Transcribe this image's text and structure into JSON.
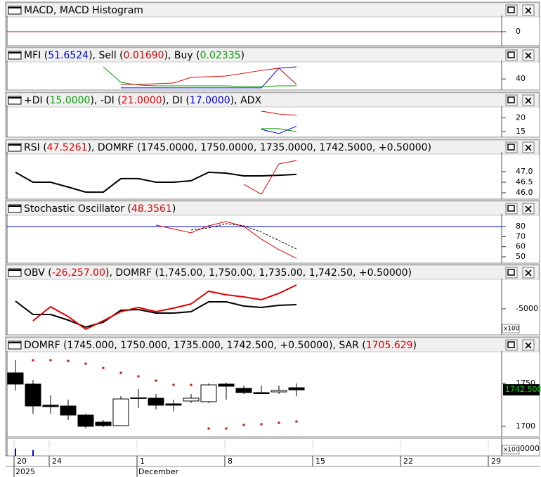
{
  "chart_data": [
    {
      "type": "line",
      "header": [
        "MACD, MACD Histogram"
      ],
      "header_colors": [
        "#000000"
      ],
      "ylim": [
        -1,
        1
      ],
      "yticks": [
        0
      ],
      "hline": 0,
      "hline_color": "#e00000",
      "series": []
    },
    {
      "type": "line",
      "header": [
        "MFI (",
        "51.6524",
        "), Sell (",
        "0.01690",
        "), Buy (",
        "0.02335",
        ")"
      ],
      "header_colors": [
        "#000000",
        "#0000e0",
        "#000000",
        "#e00000",
        "#000000",
        "#00a000",
        "#000000"
      ],
      "ylim": [
        30,
        55
      ],
      "yticks": [
        40
      ],
      "series": [
        {
          "color": "#00a000",
          "values": [
            null,
            null,
            null,
            null,
            null,
            51.6,
            36.8,
            34.1,
            33.4,
            33.4,
            33.4,
            33.4,
            33.4,
            32.7,
            32.7,
            33.4,
            33.4
          ]
        },
        {
          "color": "#e00000",
          "values": [
            null,
            null,
            null,
            null,
            null,
            null,
            34.7,
            34.7,
            35.4,
            36.1,
            41.5,
            42.2,
            42.8,
            45.5,
            48.2,
            50.3,
            34.7
          ]
        },
        {
          "color": "#0000e0",
          "values": [
            null,
            null,
            null,
            null,
            null,
            null,
            31.4,
            31.4,
            31.4,
            31.4,
            31.4,
            31.4,
            31.4,
            31.4,
            31.4,
            50.3,
            51.65
          ]
        }
      ]
    },
    {
      "type": "line",
      "header": [
        "+DI (",
        "15.0000",
        "), -DI (",
        "21.0000",
        "), DI (",
        "17.0000",
        "), ADX"
      ],
      "header_colors": [
        "#000000",
        "#00a000",
        "#000000",
        "#e00000",
        "#000000",
        "#0000e0",
        "#000000"
      ],
      "ylim": [
        13.5,
        23.5
      ],
      "yticks": [
        20,
        15
      ],
      "series": [
        {
          "color": "#e00000",
          "values": [
            null,
            null,
            null,
            null,
            null,
            null,
            null,
            null,
            null,
            null,
            null,
            null,
            null,
            null,
            22.5,
            21.4,
            21.0
          ]
        },
        {
          "color": "#00a000",
          "values": [
            null,
            null,
            null,
            null,
            null,
            null,
            null,
            null,
            null,
            null,
            null,
            null,
            null,
            null,
            16.1,
            16.1,
            15.0
          ]
        },
        {
          "color": "#0000e0",
          "values": [
            null,
            null,
            null,
            null,
            null,
            null,
            null,
            null,
            null,
            null,
            null,
            null,
            null,
            null,
            15.8,
            14.3,
            17.0
          ]
        }
      ]
    },
    {
      "type": "line",
      "header": [
        "RSI (",
        "47.5261",
        "), DOMRF (1745.0000, 1750.0000, 1735.0000, 1742.5000, +0.50000)"
      ],
      "header_colors": [
        "#000000",
        "#e00000",
        "#000000"
      ],
      "ylim": [
        45.8,
        47.8
      ],
      "yticks": [
        {
          "value": 47.0,
          "label": "47.0"
        },
        {
          "value": 46.5,
          "label": "46.5"
        },
        {
          "value": 46.0,
          "label": "46.0"
        }
      ],
      "series": [
        {
          "color": "#000000",
          "width": 2,
          "values": [
            46.97,
            46.5,
            46.5,
            46.27,
            46.03,
            46.03,
            46.67,
            46.67,
            46.5,
            46.5,
            46.57,
            46.97,
            46.93,
            46.8,
            46.8,
            46.83,
            46.87
          ]
        },
        {
          "color": "#e00000",
          "values": [
            null,
            null,
            null,
            null,
            null,
            null,
            null,
            null,
            null,
            null,
            null,
            null,
            null,
            46.4,
            45.93,
            47.37,
            47.53
          ]
        }
      ]
    },
    {
      "type": "line",
      "header": [
        "Stochastic Oscillator (",
        "48.3561",
        ")"
      ],
      "header_colors": [
        "#000000",
        "#e00000",
        "#000000"
      ],
      "ylim": [
        46.5,
        89.8
      ],
      "yticks": [
        80,
        70,
        60,
        50
      ],
      "hline": 80,
      "hline_color": "#0000c0",
      "series": [
        {
          "color": "#e00000",
          "values": [
            null,
            null,
            null,
            null,
            null,
            null,
            null,
            null,
            81.5,
            77.6,
            73.8,
            80.8,
            85.0,
            80.1,
            67.5,
            57.0,
            48.4
          ]
        },
        {
          "color": "#000000",
          "dashed": true,
          "values": [
            null,
            null,
            null,
            null,
            null,
            null,
            null,
            null,
            null,
            null,
            76.6,
            78.7,
            82.9,
            80.8,
            74.5,
            66.1,
            57.7
          ]
        }
      ]
    },
    {
      "type": "line",
      "header": [
        "OBV (",
        "-26,257.00",
        "), DOMRF (1,745.00, 1,750.00, 1,735.00, 1,742.50, +0.50000)"
      ],
      "header_colors": [
        "#000000",
        "#e00000",
        "#000000"
      ],
      "ylim": [
        -8500,
        -1100
      ],
      "yticks": [
        -5000
      ],
      "multiplier": "x100",
      "series": [
        {
          "color": "#000000",
          "width": 2,
          "values": [
            -3900,
            -5800,
            -5800,
            -6600,
            -7600,
            -6900,
            -5200,
            -5100,
            -5600,
            -5600,
            -5400,
            -4000,
            -4000,
            -4600,
            -4800,
            -4500,
            -4400
          ]
        },
        {
          "color": "#e00000",
          "width": 2,
          "values": [
            null,
            -6700,
            -4700,
            -6100,
            -7900,
            -6700,
            -5400,
            -4800,
            -5400,
            -4900,
            -4300,
            -2500,
            -3000,
            -3300,
            -3700,
            -2800,
            -1600
          ]
        }
      ]
    },
    {
      "type": "candlestick",
      "header": [
        "DOMRF (1745.000, 1750.000, 1735.000, 1742.500, +0.50000), SAR (",
        "1705.629",
        ")"
      ],
      "header_colors": [
        "#000000",
        "#e00000",
        "#000000"
      ],
      "ylim": [
        1688.5,
        1784.4
      ],
      "yticks": [
        1750,
        1700
      ],
      "last_price_label": "1742.500",
      "open": [
        1762.3,
        1749.2,
        1724.6,
        1723.7,
        1713.1,
        1704.9,
        1700.8,
        1732.8,
        1732.8,
        1726.2,
        1729.5,
        1728.7,
        1749.2,
        1744.2,
        1739.3,
        1740.1,
        1745
      ],
      "high": [
        1777,
        1754.1,
        1736,
        1731.1,
        1714.7,
        1707.4,
        1735.2,
        1743.4,
        1737.7,
        1731.1,
        1737.7,
        1750,
        1750.8,
        1747.5,
        1747.5,
        1747.5,
        1750
      ],
      "low": [
        1741.8,
        1714.7,
        1714.7,
        1707.4,
        1697.5,
        1699.2,
        1700.8,
        1721.3,
        1719.6,
        1717.2,
        1727,
        1727,
        1731.1,
        1737.7,
        1737.7,
        1737.7,
        1735
      ],
      "close": [
        1749.2,
        1723.7,
        1722.9,
        1713.1,
        1700,
        1700.8,
        1731.9,
        1733.6,
        1724.6,
        1724.6,
        1732.8,
        1748.3,
        1746.7,
        1739.3,
        1738.5,
        1741.8,
        1742.5
      ],
      "sar_color": "#e00000",
      "sar": [
        null,
        1777,
        1777,
        1776.2,
        1772.9,
        1768,
        1762.3,
        1758.2,
        1753.2,
        1748.3,
        1748.3,
        1697.5,
        1697.5,
        1701.6,
        1702.4,
        1704.1,
        1705.63
      ]
    },
    {
      "type": "volume",
      "multiplier": "x100",
      "axis_label": "0000",
      "color": "#0000e0",
      "ylim": [
        0,
        20
      ],
      "values": [
        10,
        8,
        null,
        null,
        null,
        null,
        null,
        null,
        null,
        null,
        null,
        null,
        null,
        null,
        null,
        null,
        null
      ]
    }
  ],
  "x_axis": {
    "xticks": [
      {
        "value": 0,
        "label": "20"
      },
      {
        "value": 2,
        "label": "24"
      },
      {
        "value": 7,
        "label": "1"
      },
      {
        "value": 12,
        "label": "8"
      },
      {
        "value": 17,
        "label": "15"
      },
      {
        "value": 22,
        "label": "22"
      },
      {
        "value": 27,
        "label": "29"
      }
    ],
    "sublabels": [
      {
        "value": 0,
        "label": "2025"
      },
      {
        "value": 7,
        "label": "December"
      }
    ]
  }
}
